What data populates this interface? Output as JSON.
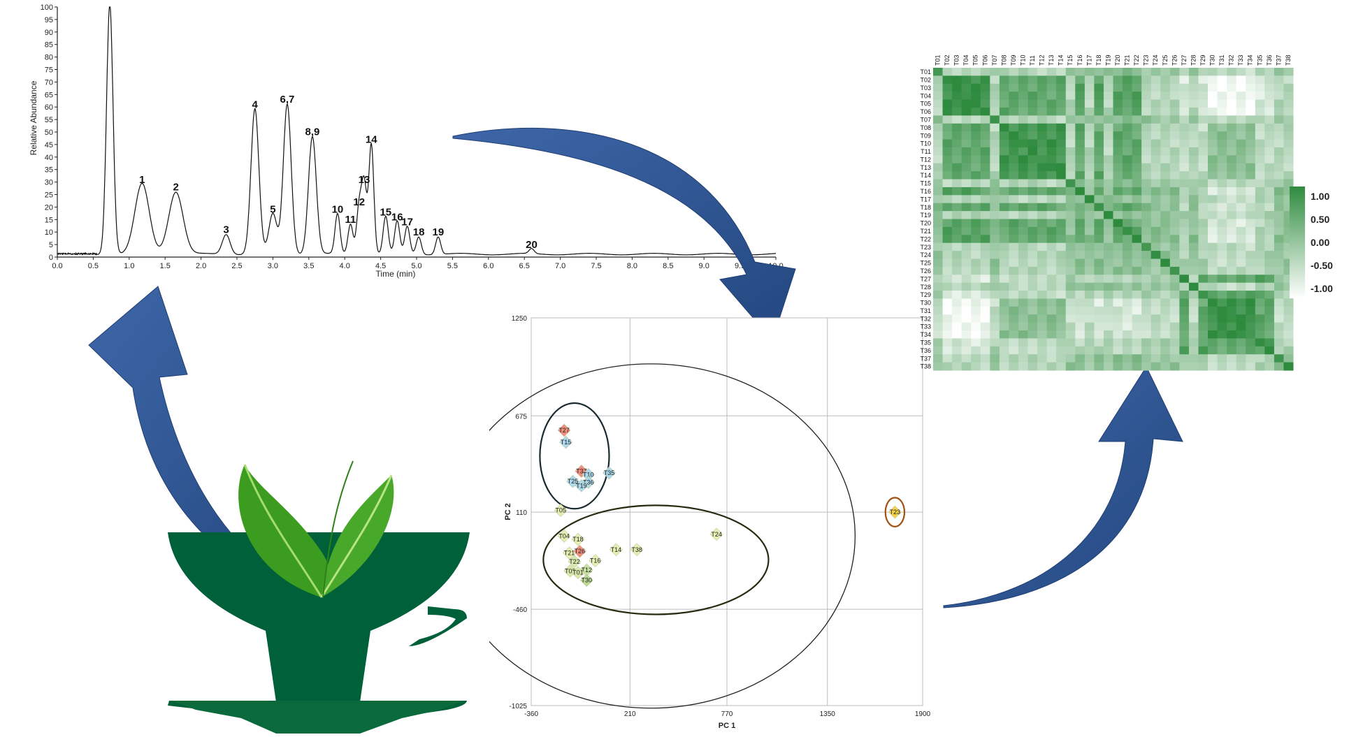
{
  "chromatogram": {
    "chart_data": {
      "type": "line",
      "xlabel": "Time (min)",
      "ylabel": "Relative Abundance",
      "xlim": [
        0.0,
        10.0
      ],
      "ylim": [
        0,
        100
      ],
      "x_ticks": [
        "0.0",
        "0.5",
        "1.0",
        "1.5",
        "2.0",
        "2.5",
        "3.0",
        "3.5",
        "4.0",
        "4.5",
        "5.0",
        "5.5",
        "6.0",
        "6.5",
        "7.0",
        "7.5",
        "8.0",
        "8.5",
        "9.0",
        "9.5",
        "10.0"
      ],
      "y_ticks": [
        "0",
        "5",
        "10",
        "15",
        "20",
        "25",
        "30",
        "35",
        "40",
        "45",
        "50",
        "55",
        "60",
        "65",
        "70",
        "75",
        "80",
        "85",
        "90",
        "95",
        "100"
      ],
      "peaks": [
        {
          "label": "1",
          "x": 1.18,
          "y": 28
        },
        {
          "label": "2",
          "x": 1.65,
          "y": 25
        },
        {
          "label": "3",
          "x": 2.35,
          "y": 8
        },
        {
          "label": "4",
          "x": 2.75,
          "y": 58
        },
        {
          "label": "5",
          "x": 3.0,
          "y": 16
        },
        {
          "label": "6,7",
          "x": 3.2,
          "y": 60
        },
        {
          "label": "8,9",
          "x": 3.55,
          "y": 47
        },
        {
          "label": "10",
          "x": 3.9,
          "y": 16
        },
        {
          "label": "11",
          "x": 4.08,
          "y": 12
        },
        {
          "label": "12",
          "x": 4.2,
          "y": 19
        },
        {
          "label": "13",
          "x": 4.27,
          "y": 28
        },
        {
          "label": "14",
          "x": 4.37,
          "y": 44
        },
        {
          "label": "15",
          "x": 4.57,
          "y": 15
        },
        {
          "label": "16",
          "x": 4.73,
          "y": 13
        },
        {
          "label": "17",
          "x": 4.87,
          "y": 11
        },
        {
          "label": "18",
          "x": 5.03,
          "y": 7
        },
        {
          "label": "19",
          "x": 5.3,
          "y": 7
        },
        {
          "label": "20",
          "x": 6.6,
          "y": 2
        }
      ],
      "unlabeled_peaks": [
        {
          "x": 0.73,
          "y": 100
        }
      ]
    }
  },
  "pca": {
    "chart_data": {
      "type": "scatter",
      "xlabel": "PC 1",
      "ylabel": "PC 2",
      "xlim": [
        -360,
        1900
      ],
      "ylim": [
        -1025,
        1250
      ],
      "x_ticks": [
        "-360",
        "210",
        "770",
        "1350",
        "1900"
      ],
      "y_ticks": [
        "1250",
        "675",
        "110",
        "-460",
        "-1025"
      ],
      "points": [
        {
          "label": "T27",
          "x": -170,
          "y": 590,
          "color": "#f08878"
        },
        {
          "label": "T15",
          "x": -160,
          "y": 520,
          "color": "#a8d8ec"
        },
        {
          "label": "T37",
          "x": -70,
          "y": 350,
          "color": "#f08878"
        },
        {
          "label": "T10",
          "x": -30,
          "y": 330,
          "color": "#a8d8ec"
        },
        {
          "label": "T35",
          "x": 90,
          "y": 340,
          "color": "#a8d8ec"
        },
        {
          "label": "T25",
          "x": -120,
          "y": 290,
          "color": "#a8d8ec"
        },
        {
          "label": "T36",
          "x": -30,
          "y": 285,
          "color": "#a8d8ec"
        },
        {
          "label": "T19",
          "x": -70,
          "y": 265,
          "color": "#a8d8ec"
        },
        {
          "label": "T05",
          "x": -190,
          "y": 120,
          "color": "#e6eeb0"
        },
        {
          "label": "T04",
          "x": -170,
          "y": -30,
          "color": "#e6eeb0"
        },
        {
          "label": "T18",
          "x": -90,
          "y": -50,
          "color": "#e6eeb0"
        },
        {
          "label": "T26",
          "x": -80,
          "y": -120,
          "color": "#f08878"
        },
        {
          "label": "T21",
          "x": -140,
          "y": -130,
          "color": "#e6eeb0"
        },
        {
          "label": "T22",
          "x": -110,
          "y": -180,
          "color": "#d8e8a8"
        },
        {
          "label": "T16",
          "x": 10,
          "y": -175,
          "color": "#e6eeb0"
        },
        {
          "label": "T12",
          "x": -40,
          "y": -230,
          "color": "#c8e0a0"
        },
        {
          "label": "T02",
          "x": -135,
          "y": -235,
          "color": "#d8e8a8"
        },
        {
          "label": "T01",
          "x": -90,
          "y": -245,
          "color": "#d8e8a8"
        },
        {
          "label": "T30",
          "x": -40,
          "y": -290,
          "color": "#b8d890"
        },
        {
          "label": "T14",
          "x": 130,
          "y": -110,
          "color": "#e6eeb0"
        },
        {
          "label": "T38",
          "x": 250,
          "y": -110,
          "color": "#e6eeb0"
        },
        {
          "label": "T24",
          "x": 710,
          "y": -20,
          "color": "#e6eeb0"
        },
        {
          "label": "T23",
          "x": 1740,
          "y": 110,
          "color": "#f4d040"
        }
      ]
    }
  },
  "heatmap": {
    "chart_data": {
      "type": "heatmap",
      "labels": [
        "T01",
        "T02",
        "T03",
        "T04",
        "T05",
        "T06",
        "T07",
        "T08",
        "T09",
        "T10",
        "T11",
        "T12",
        "T13",
        "T14",
        "T15",
        "T16",
        "T17",
        "T18",
        "T19",
        "T20",
        "T21",
        "T22",
        "T23",
        "T24",
        "T25",
        "T26",
        "T27",
        "T28",
        "T29",
        "T30",
        "T31",
        "T32",
        "T33",
        "T34",
        "T35",
        "T36",
        "T37",
        "T38"
      ],
      "colorbar": {
        "min": -1.0,
        "max": 1.0,
        "ticks": [
          "1.00",
          "0.50",
          "0.00",
          "-0.50",
          "-1.00"
        ],
        "color_high": "#2e8b3e",
        "color_low": "#ffffff"
      }
    }
  }
}
